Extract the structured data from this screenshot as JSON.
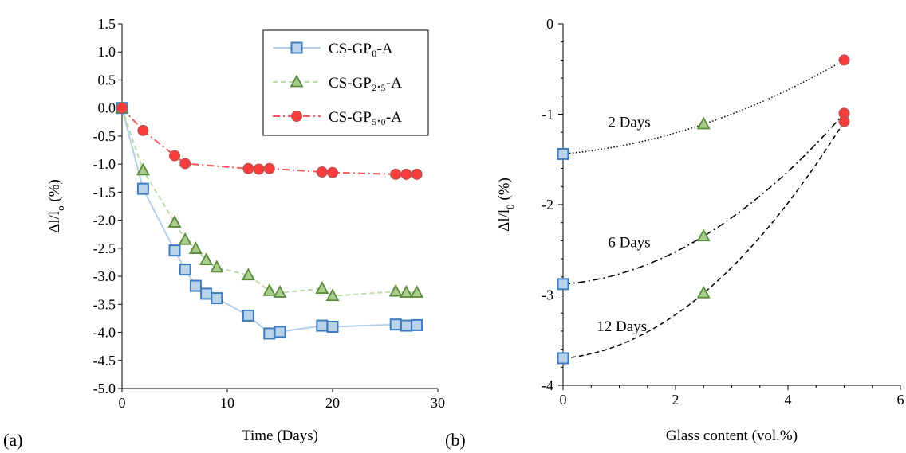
{
  "panel_a": {
    "label": "(a)"
  },
  "panel_b": {
    "label": "(b)"
  },
  "chart_data": [
    {
      "type": "line",
      "panel": "a",
      "title": "",
      "xlabel": "Time (Days)",
      "ylabel_main": "Δl/l",
      "ylabel_sub": "o",
      "ylabel_tail": " (%)",
      "xlim": [
        0,
        30
      ],
      "ylim": [
        -5.0,
        1.5
      ],
      "xticks": [
        0,
        10,
        20,
        30
      ],
      "yticks": [
        1.5,
        1.0,
        0.5,
        0.0,
        -0.5,
        -1.0,
        -1.5,
        -2.0,
        -2.5,
        -3.0,
        -3.5,
        -4.0,
        -4.5,
        -5.0
      ],
      "ytick_labels": [
        "1.5",
        "1.0",
        "0.5",
        "0.0",
        "-0.5",
        "-1.0",
        "-1.5",
        "-2.0",
        "-2.5",
        "-3.0",
        "-3.5",
        "-4.0",
        "-4.5",
        "-5.0"
      ],
      "grid": false,
      "legend": "top-right",
      "series": [
        {
          "name": "CS-GP₀-A",
          "marker": "square",
          "line": "solid",
          "fill": "#b8d3ea",
          "stroke": "#3f7bbf",
          "line_color": "#b4cfe8",
          "x": [
            0,
            2,
            5,
            6,
            7,
            8,
            9,
            12,
            14,
            15,
            19,
            20,
            26,
            27,
            28
          ],
          "y": [
            0.0,
            -1.44,
            -2.54,
            -2.88,
            -3.17,
            -3.31,
            -3.39,
            -3.7,
            -4.02,
            -3.99,
            -3.88,
            -3.9,
            -3.86,
            -3.88,
            -3.87
          ]
        },
        {
          "name": "CS-GP₂.₅-A",
          "marker": "triangle",
          "line": "dashed",
          "fill": "#aacc8c",
          "stroke": "#5a8a3c",
          "line_color": "#bcdba8",
          "x": [
            0,
            2,
            5,
            6,
            7,
            8,
            9,
            12,
            14,
            15,
            19,
            20,
            26,
            27,
            28
          ],
          "y": [
            0.0,
            -1.11,
            -2.04,
            -2.35,
            -2.51,
            -2.71,
            -2.84,
            -2.98,
            -3.26,
            -3.29,
            -3.22,
            -3.35,
            -3.27,
            -3.29,
            -3.29
          ]
        },
        {
          "name": "CS-GP₅.₀-A",
          "marker": "circle",
          "line": "dashdot",
          "fill": "#ff3b3b",
          "stroke": "#c0504d",
          "line_color": "#ee5a5a",
          "x": [
            0,
            2,
            5,
            6,
            12,
            13,
            14,
            19,
            20,
            26,
            27,
            28
          ],
          "y": [
            0.0,
            -0.4,
            -0.85,
            -0.99,
            -1.08,
            -1.09,
            -1.08,
            -1.14,
            -1.15,
            -1.18,
            -1.18,
            -1.18
          ]
        }
      ]
    },
    {
      "type": "scatter",
      "panel": "b",
      "title": "",
      "xlabel": "Glass content (vol.%)",
      "ylabel_main": "Δl/l",
      "ylabel_sub": "0",
      "ylabel_tail": " (%)",
      "xlim": [
        0,
        6
      ],
      "ylim": [
        -4,
        0
      ],
      "xticks": [
        0,
        2,
        4,
        6
      ],
      "yticks": [
        0,
        -1,
        -2,
        -3,
        -4
      ],
      "ytick_labels": [
        "0",
        "-1",
        "-2",
        "-3",
        "-4"
      ],
      "grid": false,
      "markers": {
        "0": {
          "marker": "square",
          "fill": "#b8d3ea",
          "stroke": "#3f7bbf"
        },
        "2.5": {
          "marker": "triangle",
          "fill": "#aacc8c",
          "stroke": "#5a8a3c"
        },
        "5": {
          "marker": "circle",
          "fill": "#ff3b3b",
          "stroke": "#c0504d"
        }
      },
      "series": [
        {
          "name": "2 Days",
          "x": [
            0,
            2.5,
            5
          ],
          "y": [
            -1.44,
            -1.11,
            -0.4
          ],
          "trend": "dotted",
          "label_at": [
            0.8,
            -1.09
          ]
        },
        {
          "name": "6 Days",
          "x": [
            0,
            2.5,
            5
          ],
          "y": [
            -2.88,
            -2.35,
            -0.99
          ],
          "trend": "dashdot",
          "label_at": [
            0.8,
            -2.42
          ]
        },
        {
          "name": "12 Days",
          "x": [
            0,
            2.5,
            5
          ],
          "y": [
            -3.7,
            -2.98,
            -1.08
          ],
          "trend": "dashed",
          "label_at": [
            0.6,
            -3.35
          ]
        }
      ]
    }
  ]
}
